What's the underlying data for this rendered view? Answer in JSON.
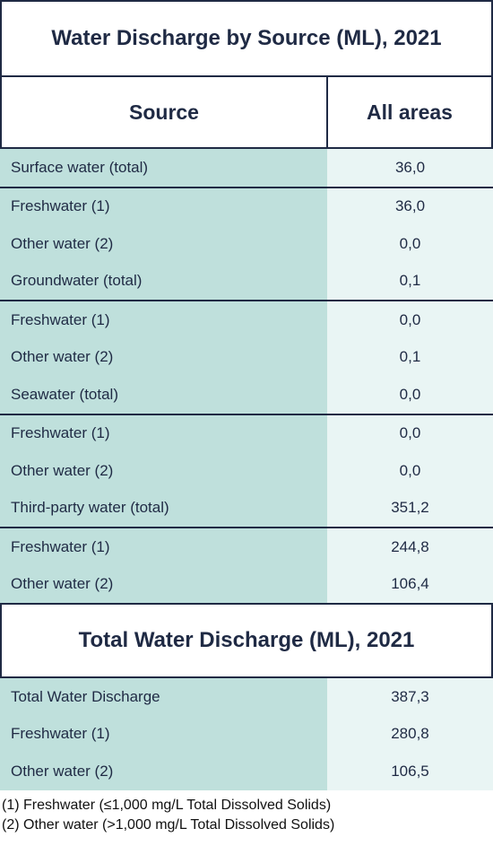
{
  "title": "Water Discharge by Source (ML), 2021",
  "header": {
    "source": "Source",
    "all_areas": "All areas"
  },
  "groups": [
    [
      {
        "label": "Surface water (total)",
        "value": "36,0"
      }
    ],
    [
      {
        "label": "Freshwater (1)",
        "value": "36,0"
      },
      {
        "label": "Other water (2)",
        "value": "0,0"
      },
      {
        "label": "Groundwater (total)",
        "value": "0,1"
      }
    ],
    [
      {
        "label": "Freshwater (1)",
        "value": "0,0"
      },
      {
        "label": "Other water (2)",
        "value": "0,1"
      },
      {
        "label": "Seawater (total)",
        "value": "0,0"
      }
    ],
    [
      {
        "label": "Freshwater (1)",
        "value": "0,0"
      },
      {
        "label": "Other water (2)",
        "value": "0,0"
      },
      {
        "label": "Third-party water (total)",
        "value": "351,2"
      }
    ],
    [
      {
        "label": "Freshwater (1)",
        "value": "244,8"
      },
      {
        "label": "Other water (2)",
        "value": "106,4"
      }
    ]
  ],
  "total_title": "Total Water Discharge (ML), 2021",
  "total_rows": [
    {
      "label": "Total Water Discharge",
      "value": "387,3"
    },
    {
      "label": "Freshwater (1)",
      "value": "280,8"
    },
    {
      "label": "Other water (2)",
      "value": "106,5"
    }
  ],
  "notes": [
    "(1) Freshwater (≤1,000 mg/L Total Dissolved Solids)",
    "(2) Other water (>1,000 mg/L Total Dissolved Solids)"
  ],
  "colors": {
    "border": "#1f2a44",
    "label_cell": "#bfe0dc",
    "value_cell": "#e9f5f4"
  }
}
